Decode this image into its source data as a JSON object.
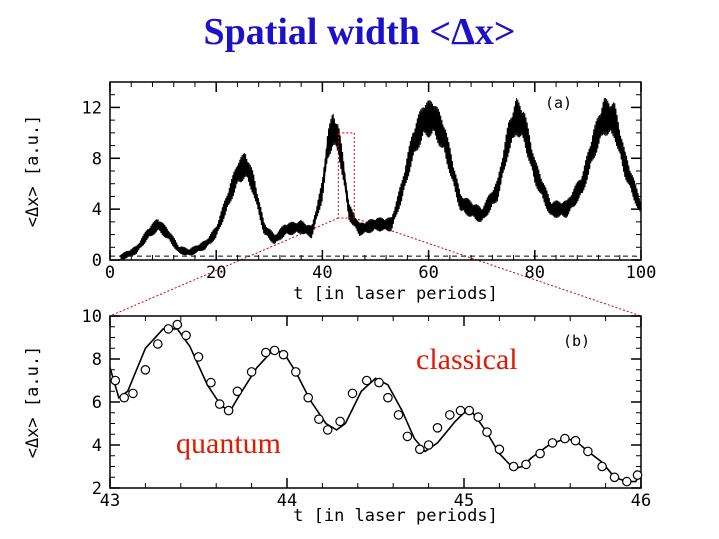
{
  "title": "Spatial width <Δx>",
  "chart_data": [
    {
      "type": "line",
      "panel_label": "(a)",
      "xlabel": "t [in laser periods]",
      "ylabel": "<Δx> [a.u.]",
      "xlim": [
        0,
        100
      ],
      "ylim": [
        0,
        14
      ],
      "xticks": [
        0,
        20,
        40,
        60,
        80,
        100
      ],
      "yticks": [
        0,
        4,
        8,
        12
      ],
      "reference_line": {
        "y": 0.3,
        "style": "dashed"
      },
      "zoom_box": {
        "x": [
          43,
          46
        ],
        "y": [
          3.3,
          10
        ]
      },
      "series": [
        {
          "x": [
            2,
            5,
            7,
            9,
            11,
            13,
            15,
            18,
            20,
            22,
            24,
            25.5,
            27,
            29,
            31,
            33,
            36,
            38,
            40,
            41,
            42,
            43,
            44,
            45,
            47,
            50,
            53,
            55,
            57,
            59,
            61,
            63,
            66,
            70,
            73,
            75,
            76.5,
            78,
            80,
            83,
            86,
            89,
            91,
            93,
            95,
            97,
            100
          ],
          "y": [
            0.2,
            0.8,
            2.0,
            2.8,
            2.0,
            0.8,
            0.6,
            1.2,
            2.2,
            4.5,
            6.8,
            7.5,
            6.0,
            2.5,
            1.6,
            2.4,
            2.6,
            2.2,
            5.5,
            9.0,
            10.3,
            9.5,
            7.0,
            3.8,
            2.4,
            2.8,
            2.8,
            5.5,
            9.0,
            11.0,
            11.2,
            9.5,
            4.5,
            3.5,
            5.5,
            9.5,
            11.3,
            10.5,
            7.0,
            4.0,
            4.0,
            6.0,
            9.0,
            11.3,
            11.0,
            7.5,
            4.0
          ]
        }
      ]
    },
    {
      "type": "line",
      "panel_label": "(b)",
      "xlabel": "t [in laser periods]",
      "ylabel": "<Δx> [a.u.]",
      "xlim": [
        43,
        46
      ],
      "ylim": [
        2,
        10
      ],
      "xticks": [
        43,
        44,
        45,
        46
      ],
      "yticks": [
        2,
        4,
        6,
        8,
        10
      ],
      "annotations": [
        "classical",
        "quantum"
      ],
      "series": [
        {
          "style": "solid line",
          "x": [
            43,
            43.05,
            43.1,
            43.2,
            43.3,
            43.38,
            43.45,
            43.55,
            43.63,
            43.68,
            43.73,
            43.83,
            43.92,
            43.98,
            44.05,
            44.13,
            44.22,
            44.28,
            44.33,
            44.42,
            44.5,
            44.57,
            44.65,
            44.72,
            44.78,
            44.85,
            44.95,
            45.0,
            45.05,
            45.12,
            45.2,
            45.28,
            45.33,
            45.38,
            45.48,
            45.57,
            45.63,
            45.7,
            45.78,
            45.85,
            45.92,
            45.97,
            46
          ],
          "y": [
            7.6,
            6.2,
            6.5,
            8.5,
            9.4,
            9.4,
            8.6,
            6.8,
            5.8,
            5.6,
            6.3,
            7.6,
            8.4,
            8.3,
            7.4,
            6.1,
            5.0,
            4.7,
            5.0,
            6.5,
            7.1,
            6.8,
            5.6,
            4.3,
            3.7,
            4.1,
            5.1,
            5.5,
            5.5,
            4.7,
            3.6,
            2.9,
            3.0,
            3.4,
            4.0,
            4.3,
            4.2,
            3.7,
            3.2,
            2.5,
            2.3,
            2.3,
            2.7
          ]
        },
        {
          "style": "open circles",
          "x": [
            43.03,
            43.08,
            43.13,
            43.2,
            43.27,
            43.33,
            43.38,
            43.43,
            43.5,
            43.57,
            43.62,
            43.67,
            43.72,
            43.8,
            43.88,
            43.93,
            43.98,
            44.05,
            44.12,
            44.18,
            44.23,
            44.3,
            44.37,
            44.45,
            44.52,
            44.57,
            44.63,
            44.68,
            44.75,
            44.8,
            44.85,
            44.92,
            44.98,
            45.03,
            45.08,
            45.13,
            45.2,
            45.28,
            45.35,
            45.43,
            45.5,
            45.57,
            45.63,
            45.7,
            45.78,
            45.85,
            45.92,
            45.98
          ],
          "y": [
            7.0,
            6.2,
            6.4,
            7.5,
            8.7,
            9.4,
            9.6,
            9.1,
            8.1,
            6.9,
            5.9,
            5.6,
            6.5,
            7.4,
            8.3,
            8.4,
            8.2,
            7.4,
            6.2,
            5.2,
            4.7,
            5.1,
            6.4,
            7.0,
            6.9,
            6.2,
            5.4,
            4.4,
            3.8,
            4.0,
            4.8,
            5.4,
            5.6,
            5.6,
            5.3,
            4.6,
            3.8,
            3.0,
            3.1,
            3.6,
            4.1,
            4.3,
            4.2,
            3.7,
            3.0,
            2.5,
            2.3,
            2.6
          ]
        }
      ]
    }
  ]
}
